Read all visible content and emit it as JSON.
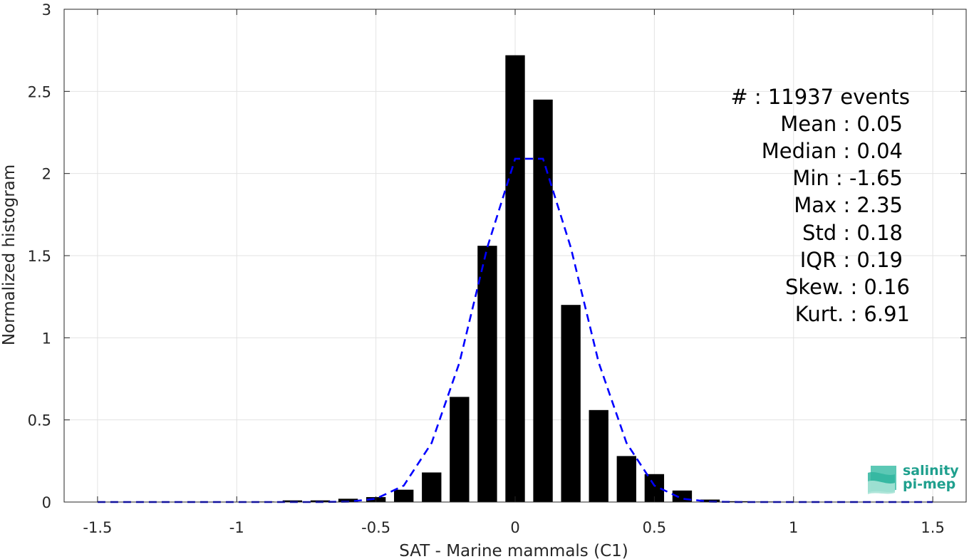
{
  "chart_data": {
    "type": "bar",
    "xlabel": "SAT - Marine mammals (C1)",
    "ylabel": "Normalized histogram",
    "xlim": [
      -1.62,
      1.62
    ],
    "ylim": [
      0,
      3
    ],
    "xticks": [
      -1.5,
      -1,
      -0.5,
      0,
      0.5,
      1,
      1.5
    ],
    "xtick_labels": [
      "-1.5",
      "-1",
      "-0.5",
      "0",
      "0.5",
      "1",
      "1.5"
    ],
    "yticks": [
      0,
      0.5,
      1,
      1.5,
      2,
      2.5,
      3
    ],
    "ytick_labels": [
      "0",
      "0.5",
      "1",
      "1.5",
      "2",
      "2.5",
      "3"
    ],
    "grid": true,
    "bar_width": 0.07,
    "bar_color": "#000000",
    "bars": {
      "x": [
        -1.5,
        -1.4,
        -1.3,
        -1.2,
        -1.1,
        -1.0,
        -0.9,
        -0.8,
        -0.7,
        -0.6,
        -0.5,
        -0.4,
        -0.3,
        -0.2,
        -0.1,
        0.0,
        0.1,
        0.2,
        0.3,
        0.4,
        0.5,
        0.6,
        0.7,
        0.8,
        0.9,
        1.0,
        1.1,
        1.2,
        1.3,
        1.4,
        1.5
      ],
      "values": [
        0.002,
        0.002,
        0.002,
        0.002,
        0.002,
        0.002,
        0.003,
        0.01,
        0.01,
        0.02,
        0.03,
        0.075,
        0.18,
        0.64,
        1.56,
        2.72,
        2.45,
        1.2,
        0.56,
        0.28,
        0.17,
        0.07,
        0.015,
        0.005,
        0.003,
        0.002,
        0.002,
        0.002,
        0.002,
        0.002,
        0.002
      ]
    },
    "fit_curve": {
      "style": "dashed",
      "color": "#0000ff",
      "x": [
        -1.5,
        -1.4,
        -1.3,
        -1.2,
        -1.1,
        -1.0,
        -0.9,
        -0.8,
        -0.7,
        -0.6,
        -0.5,
        -0.4,
        -0.3,
        -0.2,
        -0.1,
        0.0,
        0.1,
        0.2,
        0.3,
        0.4,
        0.5,
        0.6,
        0.7,
        0.8,
        0.9,
        1.0,
        1.1,
        1.2,
        1.3,
        1.4,
        1.5
      ],
      "y": [
        0,
        0,
        0,
        0,
        0,
        0,
        0,
        0,
        0,
        0.002,
        0.02,
        0.1,
        0.36,
        0.85,
        1.55,
        2.09,
        2.09,
        1.55,
        0.85,
        0.36,
        0.1,
        0.02,
        0.002,
        0,
        0,
        0,
        0,
        0,
        0,
        0,
        0
      ]
    },
    "annotation": [
      "#  : 11937 events",
      "Mean : 0.05",
      "Median : 0.04",
      "Min : -1.65",
      "Max : 2.35",
      "Std : 0.18",
      "IQR : 0.19",
      "Skew. : 0.16",
      "Kurt. : 6.91"
    ]
  },
  "logo": {
    "line1": "salinity",
    "line2": "pi-mep",
    "color": "#1fa08e"
  }
}
